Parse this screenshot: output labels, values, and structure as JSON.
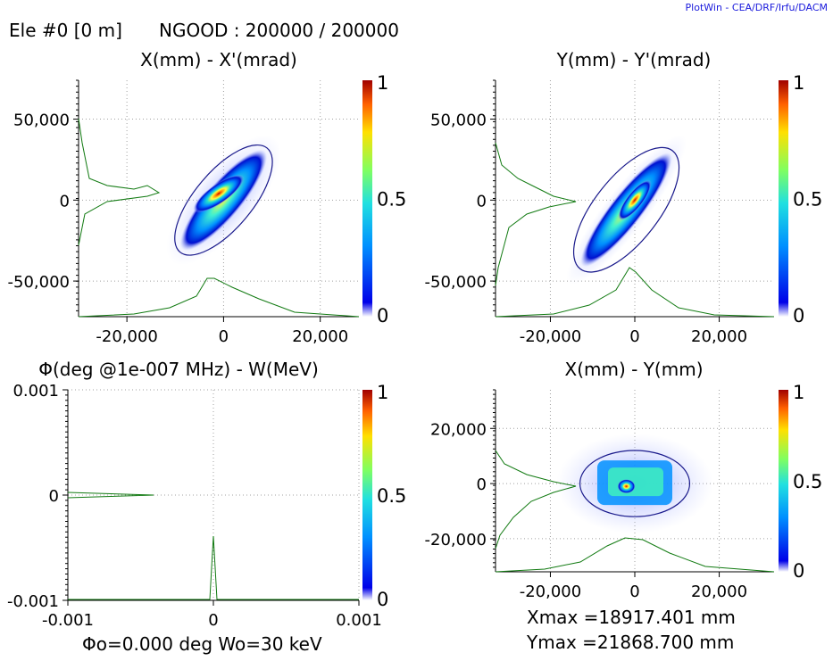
{
  "header": {
    "element": "Ele #0 [0 m]",
    "ngood": "NGOOD : 200000 / 200000",
    "credit": "PlotWin - CEA/DRF/Irfu/DACM"
  },
  "colorbar": {
    "labels": [
      "1",
      "0.5",
      "0"
    ]
  },
  "plots": {
    "xx": {
      "title": "X(mm) - X'(mrad)",
      "xlim": [
        -30000,
        28000
      ],
      "ylim": [
        -72000,
        74000
      ],
      "xticks": [
        -20000,
        0,
        20000
      ],
      "xtick_labels": [
        "-20,000",
        "0",
        "20,000"
      ],
      "yticks": [
        50000,
        0,
        -50000
      ],
      "ytick_labels": [
        "50,000",
        "0",
        "-50,000"
      ]
    },
    "yy": {
      "title": "Y(mm) - Y'(mrad)",
      "xlim": [
        -33000,
        33000
      ],
      "ylim": [
        -72000,
        74000
      ],
      "xticks": [
        -20000,
        0,
        20000
      ],
      "xtick_labels": [
        "-20,000",
        "0",
        "20,000"
      ],
      "yticks": [
        50000,
        0,
        -50000
      ],
      "ytick_labels": [
        "50,000",
        "0",
        "-50,000"
      ]
    },
    "pw": {
      "title": "Φ(deg @1e-007 MHz) - W(MeV)",
      "xlim": [
        -0.001,
        0.001
      ],
      "ylim": [
        -0.001,
        0.001
      ],
      "xticks": [
        -0.001,
        0,
        0.001
      ],
      "xtick_labels": [
        "-0.001",
        "0",
        "0.001"
      ],
      "yticks": [
        0.001,
        0,
        -0.001
      ],
      "ytick_labels": [
        "0.001",
        "0",
        "-0.001"
      ],
      "footer": "Φo=0.000 deg  Wo=30 keV"
    },
    "xy": {
      "title": "X(mm) - Y(mm)",
      "xlim": [
        -33000,
        33000
      ],
      "ylim": [
        -32000,
        34000
      ],
      "xticks": [
        -20000,
        0,
        20000
      ],
      "xtick_labels": [
        "-20,000",
        "0",
        "20,000"
      ],
      "yticks": [
        20000,
        0,
        -20000
      ],
      "ytick_labels": [
        "20,000",
        "0",
        "-20,000"
      ],
      "xmax": "Xmax =18917.401 mm",
      "ymax": "Ymax =21868.700 mm"
    }
  },
  "chart_data": [
    {
      "type": "heatmap",
      "title": "X(mm) - X'(mrad)",
      "xlabel": "X(mm)",
      "ylabel": "X'(mrad)",
      "xlim": [
        -30000,
        28000
      ],
      "ylim": [
        -72000,
        74000
      ],
      "ellipse": {
        "cx": 0,
        "cy": 0,
        "rx": 15000,
        "ry": 38000,
        "tilt": "positive correlation"
      },
      "peak": [
        -1000,
        4000
      ]
    },
    {
      "type": "heatmap",
      "title": "Y(mm) - Y'(mrad)",
      "xlabel": "Y(mm)",
      "ylabel": "Y'(mrad)",
      "xlim": [
        -33000,
        33000
      ],
      "ylim": [
        -72000,
        74000
      ],
      "ellipse": {
        "cx": -2000,
        "cy": -6000,
        "rx": 19000,
        "ry": 42000,
        "tilt": "positive correlation"
      },
      "peak": [
        0,
        0
      ]
    },
    {
      "type": "line",
      "title": "Φ(deg @1e-007 MHz) - W(MeV)",
      "xlabel": "Φ",
      "ylabel": "W",
      "xlim": [
        -0.001,
        0.001
      ],
      "ylim": [
        -0.001,
        0.001
      ],
      "note": "all particles at Φ=0, W=0 (delta distributions)"
    },
    {
      "type": "heatmap",
      "title": "X(mm) - Y(mm)",
      "xlabel": "X(mm)",
      "ylabel": "Y(mm)",
      "xlim": [
        -33000,
        33000
      ],
      "ylim": [
        -32000,
        34000
      ],
      "ellipse": {
        "cx": 0,
        "cy": 0,
        "rx": 13000,
        "ry": 12000
      },
      "peak": [
        -2000,
        -1000
      ]
    }
  ]
}
